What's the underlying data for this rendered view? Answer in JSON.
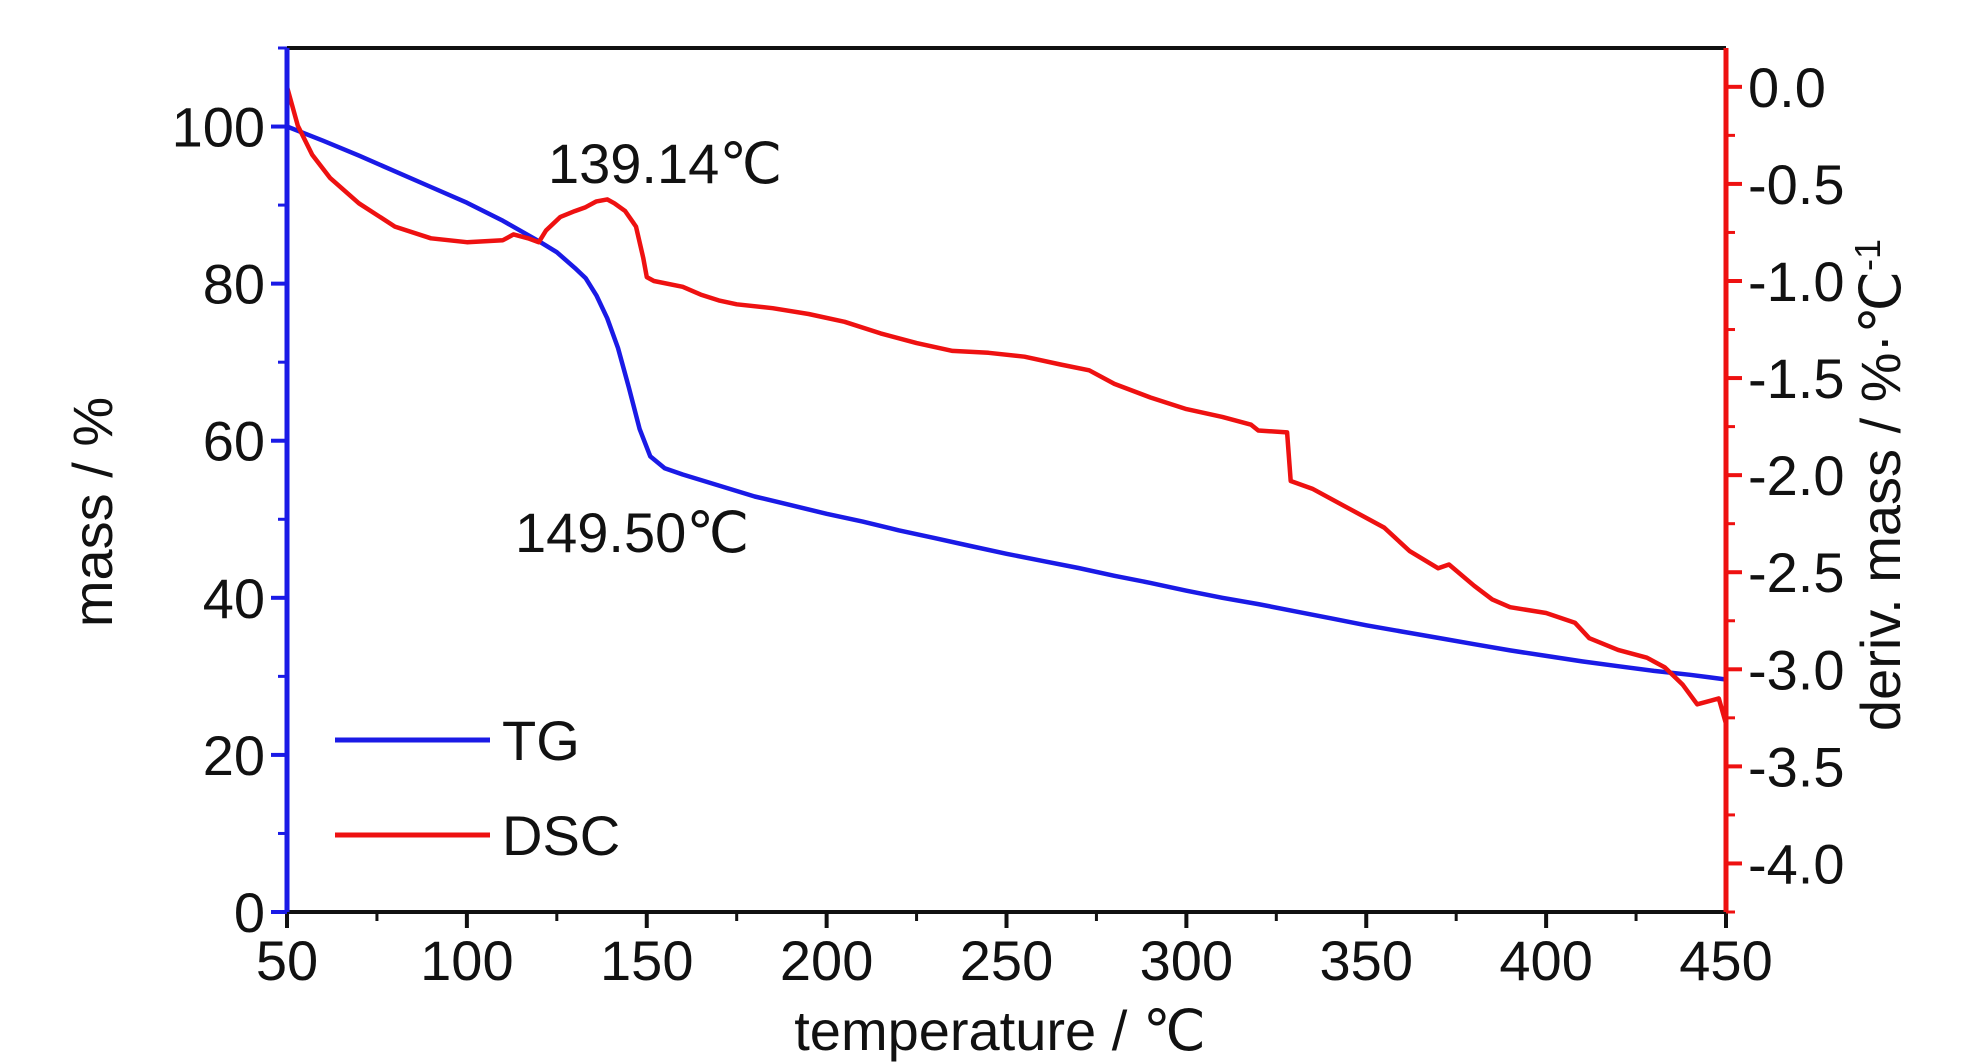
{
  "chart_data": {
    "type": "line",
    "title": "",
    "xlabel": "temperature / ℃",
    "ylabel_left": "mass / %",
    "ylabel_right_main": "deriv. mass / %·℃",
    "ylabel_right_sup": "-1",
    "xlim": [
      50,
      450
    ],
    "ylim_left": [
      0,
      110
    ],
    "ylim_right": [
      -4.25,
      0.2
    ],
    "x_ticks": [
      50,
      100,
      150,
      200,
      250,
      300,
      350,
      400,
      450
    ],
    "x_tick_labels": [
      "50",
      "100",
      "150",
      "200",
      "250",
      "300",
      "350",
      "400",
      "450"
    ],
    "y_left_ticks": [
      0,
      20,
      40,
      60,
      80,
      100
    ],
    "y_left_tick_labels": [
      "0",
      "20",
      "40",
      "60",
      "80",
      "100"
    ],
    "y_right_ticks": [
      0.0,
      -0.5,
      -1.0,
      -1.5,
      -2.0,
      -2.5,
      -3.0,
      -3.5,
      -4.0
    ],
    "y_right_tick_labels": [
      "0.0",
      "-0.5",
      "-1.0",
      "-1.5",
      "-2.0",
      "-2.5",
      "-3.0",
      "-3.5",
      "-4.0"
    ],
    "grid": false,
    "legend_position": "bottom-left",
    "series": [
      {
        "name": "TG",
        "axis": "left",
        "color": "#1a1ae6",
        "points": [
          [
            50,
            100
          ],
          [
            60,
            98.2
          ],
          [
            70,
            96.3
          ],
          [
            80,
            94.3
          ],
          [
            90,
            92.3
          ],
          [
            100,
            90.3
          ],
          [
            110,
            88.0
          ],
          [
            120,
            85.4
          ],
          [
            125,
            84.0
          ],
          [
            130,
            82.0
          ],
          [
            133,
            80.7
          ],
          [
            136,
            78.5
          ],
          [
            139,
            75.6
          ],
          [
            142,
            71.8
          ],
          [
            145,
            66.8
          ],
          [
            148,
            61.5
          ],
          [
            151,
            58.0
          ],
          [
            155,
            56.5
          ],
          [
            160,
            55.7
          ],
          [
            170,
            54.3
          ],
          [
            180,
            52.9
          ],
          [
            190,
            51.8
          ],
          [
            200,
            50.7
          ],
          [
            210,
            49.7
          ],
          [
            220,
            48.6
          ],
          [
            230,
            47.6
          ],
          [
            240,
            46.6
          ],
          [
            250,
            45.6
          ],
          [
            260,
            44.7
          ],
          [
            270,
            43.8
          ],
          [
            280,
            42.8
          ],
          [
            290,
            41.9
          ],
          [
            300,
            40.9
          ],
          [
            310,
            40.0
          ],
          [
            320,
            39.2
          ],
          [
            330,
            38.3
          ],
          [
            340,
            37.4
          ],
          [
            350,
            36.5
          ],
          [
            360,
            35.7
          ],
          [
            370,
            34.9
          ],
          [
            380,
            34.1
          ],
          [
            390,
            33.3
          ],
          [
            400,
            32.6
          ],
          [
            410,
            31.9
          ],
          [
            420,
            31.3
          ],
          [
            430,
            30.7
          ],
          [
            440,
            30.2
          ],
          [
            445,
            29.9
          ],
          [
            450,
            29.6
          ]
        ]
      },
      {
        "name": "DSC",
        "axis": "right",
        "color": "#ee1111",
        "points": [
          [
            50,
            0.0
          ],
          [
            53,
            -0.2
          ],
          [
            57,
            -0.35
          ],
          [
            62,
            -0.47
          ],
          [
            70,
            -0.6
          ],
          [
            80,
            -0.72
          ],
          [
            90,
            -0.78
          ],
          [
            100,
            -0.8
          ],
          [
            110,
            -0.79
          ],
          [
            113,
            -0.76
          ],
          [
            117,
            -0.78
          ],
          [
            120,
            -0.8
          ],
          [
            122,
            -0.74
          ],
          [
            126,
            -0.67
          ],
          [
            130,
            -0.64
          ],
          [
            133,
            -0.62
          ],
          [
            136,
            -0.59
          ],
          [
            139,
            -0.58
          ],
          [
            141,
            -0.6
          ],
          [
            144,
            -0.64
          ],
          [
            147,
            -0.72
          ],
          [
            149,
            -0.88
          ],
          [
            150,
            -0.98
          ],
          [
            152,
            -1.0
          ],
          [
            160,
            -1.03
          ],
          [
            165,
            -1.07
          ],
          [
            170,
            -1.1
          ],
          [
            175,
            -1.12
          ],
          [
            185,
            -1.14
          ],
          [
            195,
            -1.17
          ],
          [
            205,
            -1.21
          ],
          [
            215,
            -1.27
          ],
          [
            225,
            -1.32
          ],
          [
            235,
            -1.36
          ],
          [
            245,
            -1.37
          ],
          [
            255,
            -1.39
          ],
          [
            265,
            -1.43
          ],
          [
            273,
            -1.46
          ],
          [
            280,
            -1.53
          ],
          [
            290,
            -1.6
          ],
          [
            300,
            -1.66
          ],
          [
            310,
            -1.7
          ],
          [
            318,
            -1.74
          ],
          [
            320,
            -1.77
          ],
          [
            328,
            -1.78
          ],
          [
            329,
            -2.03
          ],
          [
            335,
            -2.07
          ],
          [
            345,
            -2.17
          ],
          [
            355,
            -2.27
          ],
          [
            362,
            -2.39
          ],
          [
            370,
            -2.48
          ],
          [
            373,
            -2.46
          ],
          [
            380,
            -2.57
          ],
          [
            385,
            -2.64
          ],
          [
            390,
            -2.68
          ],
          [
            400,
            -2.71
          ],
          [
            408,
            -2.76
          ],
          [
            412,
            -2.84
          ],
          [
            420,
            -2.9
          ],
          [
            428,
            -2.94
          ],
          [
            433,
            -2.99
          ],
          [
            438,
            -3.08
          ],
          [
            442,
            -3.18
          ],
          [
            446,
            -3.16
          ],
          [
            448,
            -3.15
          ],
          [
            450,
            -3.28
          ]
        ]
      }
    ],
    "annotations": [
      {
        "text": "139.14℃",
        "x": 139.14,
        "y": -0.58,
        "axis": "right"
      },
      {
        "text": "149.50℃",
        "x": 149.5,
        "y": 58.0,
        "axis": "left"
      }
    ],
    "axis_colors": {
      "left": "#1a1ae6",
      "right": "#ee1111",
      "frame": "#111111"
    }
  }
}
